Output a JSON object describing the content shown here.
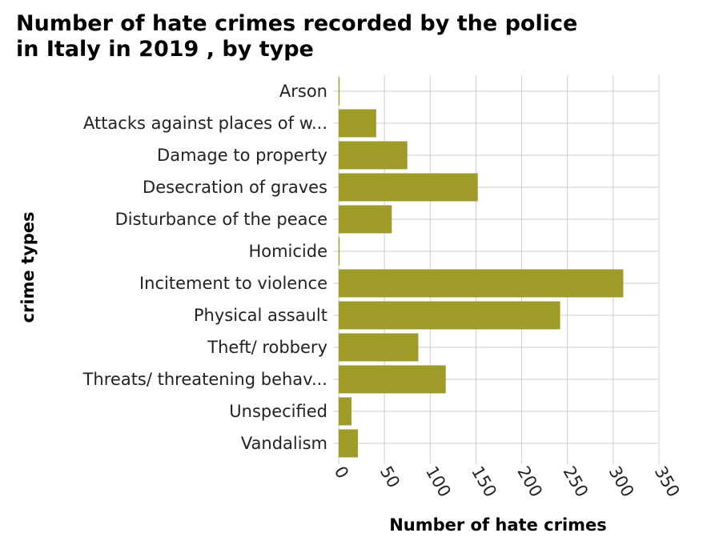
{
  "chart_data": {
    "type": "bar",
    "orientation": "horizontal",
    "title_line1": "Number of hate crimes recorded by the police",
    "title_line2": "in Italy in 2019 , by type",
    "xlabel": "Number of hate crimes",
    "ylabel": "crime types",
    "xlim": [
      0,
      350
    ],
    "xticks": [
      0,
      50,
      100,
      150,
      200,
      250,
      300,
      350
    ],
    "grid": true,
    "bar_color": "#9e9b28",
    "categories": [
      "Arson",
      "Attacks against places of w...",
      "Damage to property",
      "Desecration of graves",
      "Disturbance of the peace",
      "Homicide",
      "Incitement to violence",
      "Physical assault",
      "Theft/ robbery",
      "Threats/ threatening behav...",
      "Unspecified",
      "Vandalism"
    ],
    "values": [
      1,
      41,
      75,
      152,
      58,
      1,
      311,
      242,
      87,
      117,
      14,
      21
    ]
  }
}
